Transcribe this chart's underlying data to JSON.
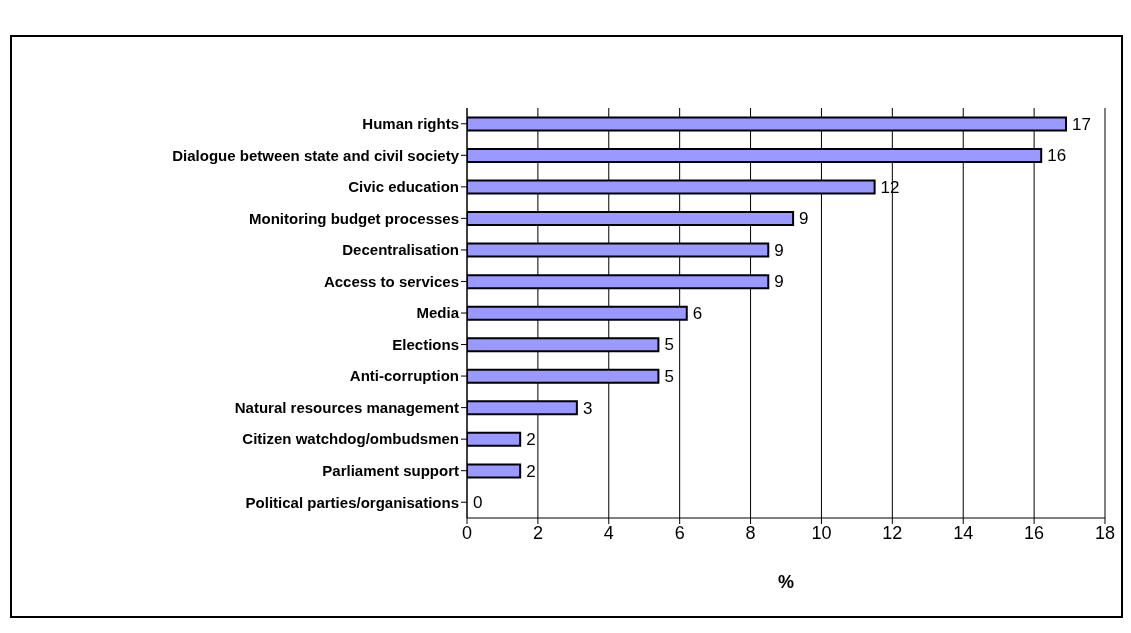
{
  "chart_data": {
    "type": "bar",
    "orientation": "horizontal",
    "xlabel": "%",
    "categories": [
      "Human rights",
      "Dialogue between state and civil society",
      "Civic education",
      "Monitoring budget processes",
      "Decentralisation",
      "Access to services",
      "Media",
      "Elections",
      "Anti-corruption",
      "Natural resources management",
      "Citizen watchdog/ombudsmen",
      "Parliament support",
      "Political parties/organisations"
    ],
    "values": [
      16.9,
      16.2,
      11.5,
      9.2,
      8.5,
      8.5,
      6.2,
      5.4,
      5.4,
      3.1,
      1.5,
      1.5,
      0
    ],
    "value_labels": [
      "17",
      "16",
      "12",
      "9",
      "9",
      "9",
      "6",
      "5",
      "5",
      "3",
      "2",
      "2",
      "0"
    ],
    "color": "#9999ff",
    "xlim": [
      0,
      18
    ],
    "xticks": [
      0,
      2,
      4,
      6,
      8,
      10,
      12,
      14,
      16,
      18
    ],
    "grid": "x"
  }
}
